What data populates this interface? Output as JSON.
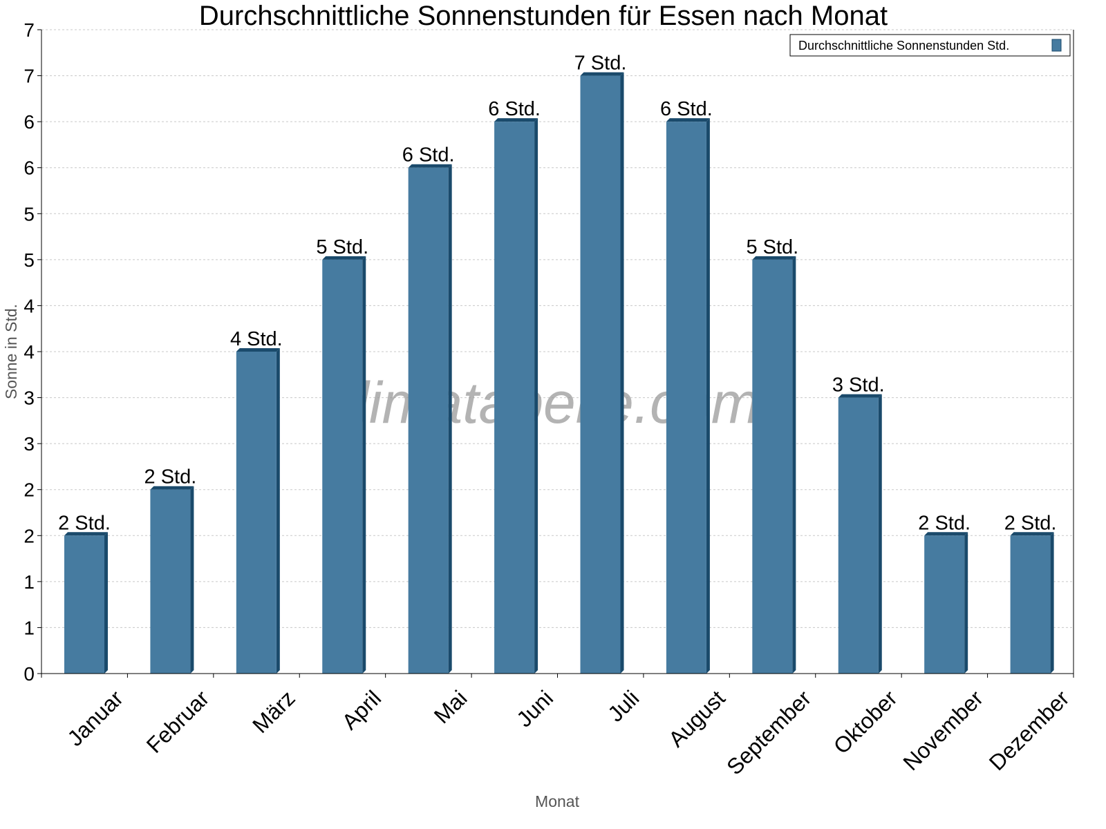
{
  "chart_data": {
    "type": "bar",
    "title": "Durchschnittliche Sonnenstunden für Essen nach Monat",
    "xlabel": "Monat",
    "ylabel": "Sonne in Std.",
    "categories": [
      "Januar",
      "Februar",
      "März",
      "April",
      "Mai",
      "Juni",
      "Juli",
      "August",
      "September",
      "Oktober",
      "November",
      "Dezember"
    ],
    "series": [
      {
        "name": "Durchschnittliche Sonnenstunden Std.",
        "values": [
          1.5,
          2.0,
          3.5,
          4.5,
          5.5,
          6.0,
          6.5,
          6.0,
          4.5,
          3.0,
          1.5,
          1.5
        ],
        "data_labels": [
          "2 Std.",
          "2 Std.",
          "4 Std.",
          "5 Std.",
          "6 Std.",
          "6 Std.",
          "7 Std.",
          "6 Std.",
          "5 Std.",
          "3 Std.",
          "2 Std.",
          "2 Std."
        ]
      }
    ],
    "ylim": [
      0,
      7
    ],
    "yticks": [
      0,
      0.5,
      1,
      1.5,
      2,
      2.5,
      3,
      3.5,
      4,
      4.5,
      5,
      5.5,
      6,
      6.5,
      7
    ],
    "ytick_labels": [
      "0",
      "1",
      "1",
      "2",
      "2",
      "3",
      "3",
      "4",
      "4",
      "5",
      "5",
      "6",
      "6",
      "7",
      "7"
    ],
    "grid": true,
    "legend": "top-right",
    "watermark": "klimatabelle.com",
    "colors": {
      "bar": "#467ba0",
      "bar_side": "#1a4a6b",
      "grid": "#c8c8c8"
    }
  }
}
